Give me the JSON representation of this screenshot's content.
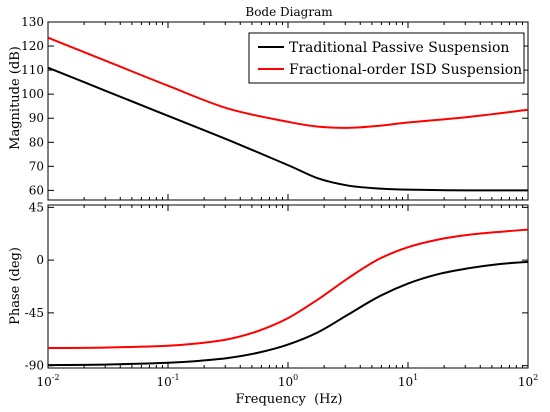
{
  "chart_data": [
    {
      "type": "line",
      "title": "Bode Diagram",
      "xlabel": "",
      "ylabel": "Magnitude (dB)",
      "x_scale": "log",
      "xlim": [
        0.01,
        100
      ],
      "ylim": [
        56,
        130
      ],
      "yticks": [
        60,
        70,
        80,
        90,
        100,
        110,
        120,
        130
      ],
      "grid": false,
      "legend_position": "top-right",
      "series": [
        {
          "name": "Traditional Passive Suspension",
          "color": "#000000",
          "x": [
            0.01,
            0.03162,
            0.1,
            0.3162,
            1.0,
            1.778,
            3.162,
            5.623,
            10,
            31.62,
            100
          ],
          "values": [
            111,
            101,
            91,
            81,
            70.5,
            65,
            62,
            60.8,
            60.3,
            60,
            60
          ]
        },
        {
          "name": "Fractional-order ISD Suspension",
          "color": "#ff0000",
          "x": [
            0.01,
            0.03162,
            0.1,
            0.3162,
            1.0,
            1.778,
            3.162,
            5.623,
            10,
            31.62,
            100
          ],
          "values": [
            123.5,
            113.5,
            103.5,
            94,
            88.5,
            86.5,
            86,
            86.8,
            88.2,
            90.5,
            93.5
          ]
        }
      ]
    },
    {
      "type": "line",
      "title": "",
      "xlabel": "Frequency  (Hz)",
      "ylabel": "Phase (deg)",
      "x_scale": "log",
      "xlim": [
        0.01,
        100
      ],
      "xticks": [
        0.01,
        0.1,
        1,
        10,
        100
      ],
      "xtick_labels": [
        {
          "base": "10",
          "exp": "-2"
        },
        {
          "base": "10",
          "exp": "-1"
        },
        {
          "base": "10",
          "exp": "0"
        },
        {
          "base": "10",
          "exp": "1"
        },
        {
          "base": "10",
          "exp": "2"
        }
      ],
      "ylim": [
        -92,
        47
      ],
      "yticks": [
        -90,
        -45,
        0,
        45
      ],
      "grid": false,
      "series": [
        {
          "name": "Traditional Passive Suspension",
          "color": "#000000",
          "x": [
            0.01,
            0.03162,
            0.1,
            0.1778,
            0.3162,
            0.5623,
            1.0,
            1.778,
            3.162,
            5.623,
            10,
            17.78,
            31.62,
            56.23,
            100
          ],
          "values": [
            -89.5,
            -89,
            -87.5,
            -86,
            -83.5,
            -79,
            -72,
            -61.5,
            -46.5,
            -31.5,
            -20,
            -12,
            -7,
            -3.5,
            -1.5
          ]
        },
        {
          "name": "Fractional-order ISD Suspension",
          "color": "#ff0000",
          "x": [
            0.01,
            0.03162,
            0.1,
            0.1778,
            0.3162,
            0.5623,
            1.0,
            1.778,
            3.162,
            5.623,
            10,
            17.78,
            31.62,
            56.23,
            100
          ],
          "values": [
            -75,
            -74.5,
            -73,
            -71,
            -67.5,
            -60.5,
            -49.5,
            -33.5,
            -15.5,
            0.5,
            11,
            17.5,
            21.5,
            24,
            26
          ]
        }
      ]
    }
  ],
  "legend": [
    {
      "label": "Traditional Passive Suspension",
      "color": "#000000"
    },
    {
      "label": "Fractional-order ISD Suspension",
      "color": "#ff0000"
    }
  ]
}
